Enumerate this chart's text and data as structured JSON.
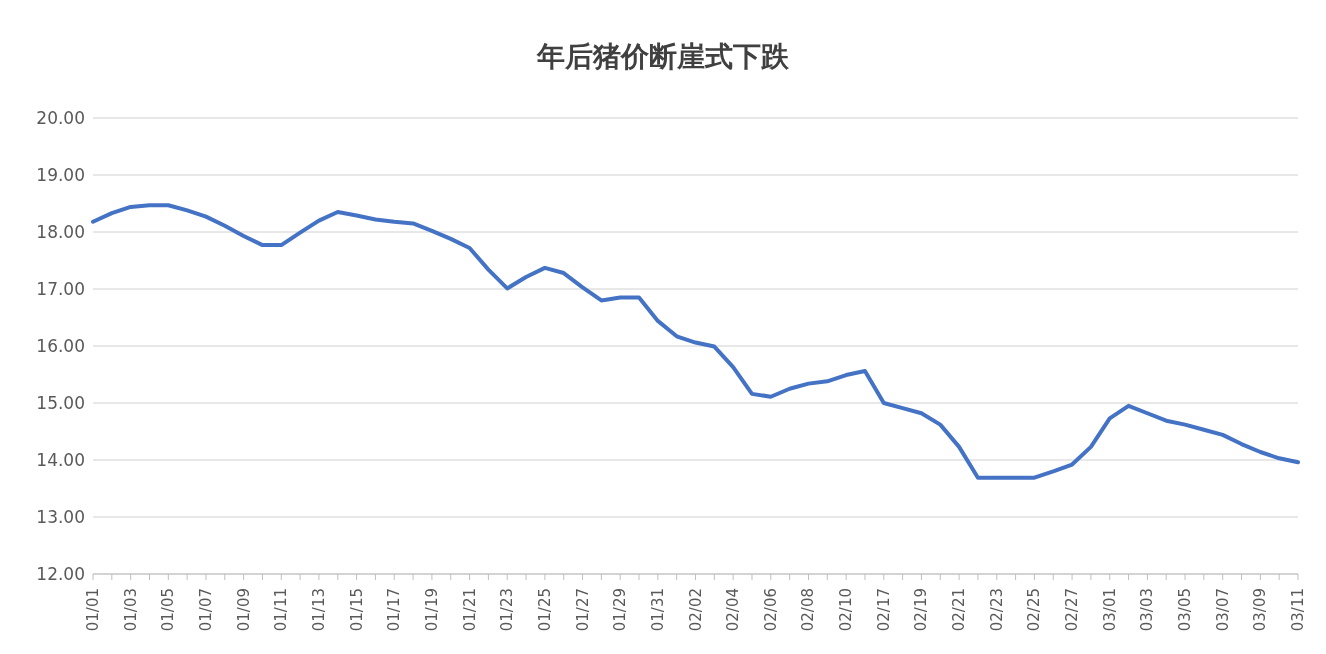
{
  "chart_data": {
    "type": "line",
    "title": "年后猪价断崖式下跌",
    "categories": [
      "01/01",
      null,
      "01/03",
      null,
      "01/05",
      null,
      "01/07",
      null,
      "01/09",
      null,
      "01/11",
      null,
      "01/13",
      null,
      "01/15",
      null,
      "01/17",
      null,
      "01/19",
      null,
      "01/21",
      null,
      "01/23",
      null,
      "01/25",
      null,
      "01/27",
      null,
      "01/29",
      null,
      "01/31",
      null,
      "02/02",
      null,
      "02/04",
      null,
      "02/06",
      null,
      "02/08",
      null,
      "02/10",
      null,
      "02/17",
      null,
      "02/19",
      null,
      "02/21",
      null,
      "02/23",
      null,
      "02/25",
      null,
      "02/27",
      null,
      "03/01",
      null,
      "03/03",
      null,
      "03/05",
      null,
      "03/07",
      null,
      "03/09",
      null,
      "03/11"
    ],
    "series": [
      {
        "color": "#4472c4",
        "values": [
          18.18,
          18.33,
          18.44,
          18.47,
          18.47,
          18.38,
          18.27,
          18.11,
          17.93,
          17.77,
          17.77,
          17.99,
          18.2,
          18.35,
          18.29,
          18.22,
          18.18,
          18.15,
          18.02,
          17.88,
          17.72,
          17.34,
          17.01,
          17.21,
          17.37,
          17.28,
          17.03,
          16.8,
          16.85,
          16.85,
          16.44,
          16.17,
          16.06,
          15.99,
          15.63,
          15.16,
          15.11,
          15.25,
          15.34,
          15.38,
          15.49,
          15.56,
          15.0,
          14.91,
          14.82,
          14.62,
          14.23,
          13.69,
          13.69,
          13.69,
          13.69,
          13.8,
          13.92,
          14.23,
          14.73,
          14.95,
          14.82,
          14.69,
          14.62,
          14.53,
          14.44,
          14.28,
          14.14,
          14.03,
          13.96
        ]
      }
    ],
    "ylim": [
      12,
      20
    ],
    "yticks": [
      {
        "value": 12,
        "label": "12.00"
      },
      {
        "value": 13,
        "label": "13.00"
      },
      {
        "value": 14,
        "label": "14.00"
      },
      {
        "value": 15,
        "label": "15.00"
      },
      {
        "value": 16,
        "label": "16.00"
      },
      {
        "value": 17,
        "label": "17.00"
      },
      {
        "value": 18,
        "label": "18.00"
      },
      {
        "value": 19,
        "label": "19.00"
      },
      {
        "value": 20,
        "label": "20.00"
      }
    ],
    "grid": "y",
    "marker": "none",
    "line_style": "solid",
    "legend": false
  }
}
